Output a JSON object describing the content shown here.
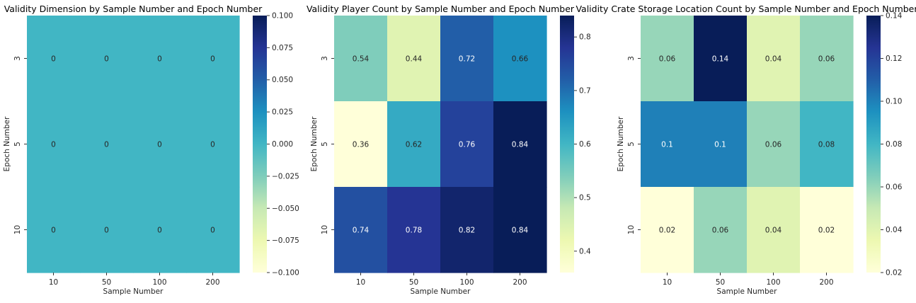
{
  "chart_data": [
    {
      "type": "heatmap",
      "title": "Validity Dimension by Sample Number and Epoch Number",
      "xlabel": "Sample Number",
      "ylabel": "Epoch Number",
      "x_categories": [
        "10",
        "50",
        "100",
        "200"
      ],
      "y_categories": [
        "3",
        "5",
        "10"
      ],
      "values": [
        [
          0,
          0,
          0,
          0
        ],
        [
          0,
          0,
          0,
          0
        ],
        [
          0,
          0,
          0,
          0
        ]
      ],
      "cell_labels": [
        [
          "0",
          "0",
          "0",
          "0"
        ],
        [
          "0",
          "0",
          "0",
          "0"
        ],
        [
          "0",
          "0",
          "0",
          "0"
        ]
      ],
      "colormap": "YlGnBu",
      "colorbar_range": [
        -0.1,
        0.1
      ],
      "colorbar_ticks": [
        {
          "value": 0.1,
          "label": "0.100"
        },
        {
          "value": 0.075,
          "label": "0.075"
        },
        {
          "value": 0.05,
          "label": "0.050"
        },
        {
          "value": 0.025,
          "label": "0.025"
        },
        {
          "value": 0.0,
          "label": "0.000"
        },
        {
          "value": -0.025,
          "label": "−0.025"
        },
        {
          "value": -0.05,
          "label": "−0.050"
        },
        {
          "value": -0.075,
          "label": "−0.075"
        },
        {
          "value": -0.1,
          "label": "−0.100"
        }
      ]
    },
    {
      "type": "heatmap",
      "title": "Validity Player Count by Sample Number and Epoch Number",
      "xlabel": "Sample Number",
      "ylabel": "Epoch Number",
      "x_categories": [
        "10",
        "50",
        "100",
        "200"
      ],
      "y_categories": [
        "3",
        "5",
        "10"
      ],
      "values": [
        [
          0.54,
          0.44,
          0.72,
          0.66
        ],
        [
          0.36,
          0.62,
          0.76,
          0.84
        ],
        [
          0.74,
          0.78,
          0.82,
          0.84
        ]
      ],
      "cell_labels": [
        [
          "0.54",
          "0.44",
          "0.72",
          "0.66"
        ],
        [
          "0.36",
          "0.62",
          "0.76",
          "0.84"
        ],
        [
          "0.74",
          "0.78",
          "0.82",
          "0.84"
        ]
      ],
      "colormap": "YlGnBu",
      "colorbar_range": [
        0.36,
        0.84
      ],
      "colorbar_ticks": [
        {
          "value": 0.8,
          "label": "0.8"
        },
        {
          "value": 0.7,
          "label": "0.7"
        },
        {
          "value": 0.6,
          "label": "0.6"
        },
        {
          "value": 0.5,
          "label": "0.5"
        },
        {
          "value": 0.4,
          "label": "0.4"
        }
      ]
    },
    {
      "type": "heatmap",
      "title": "Validity Crate Storage Location Count by Sample Number and Epoch Number",
      "xlabel": "Sample Number",
      "ylabel": "Epoch Number",
      "x_categories": [
        "10",
        "50",
        "100",
        "200"
      ],
      "y_categories": [
        "3",
        "5",
        "10"
      ],
      "values": [
        [
          0.06,
          0.14,
          0.04,
          0.06
        ],
        [
          0.1,
          0.1,
          0.06,
          0.08
        ],
        [
          0.02,
          0.06,
          0.04,
          0.02
        ]
      ],
      "cell_labels": [
        [
          "0.06",
          "0.14",
          "0.04",
          "0.06"
        ],
        [
          "0.1",
          "0.1",
          "0.06",
          "0.08"
        ],
        [
          "0.02",
          "0.06",
          "0.04",
          "0.02"
        ]
      ],
      "colormap": "YlGnBu",
      "colorbar_range": [
        0.02,
        0.14
      ],
      "colorbar_ticks": [
        {
          "value": 0.14,
          "label": "0.14"
        },
        {
          "value": 0.12,
          "label": "0.12"
        },
        {
          "value": 0.1,
          "label": "0.10"
        },
        {
          "value": 0.08,
          "label": "0.08"
        },
        {
          "value": 0.06,
          "label": "0.06"
        },
        {
          "value": 0.04,
          "label": "0.04"
        },
        {
          "value": 0.02,
          "label": "0.02"
        }
      ]
    }
  ]
}
